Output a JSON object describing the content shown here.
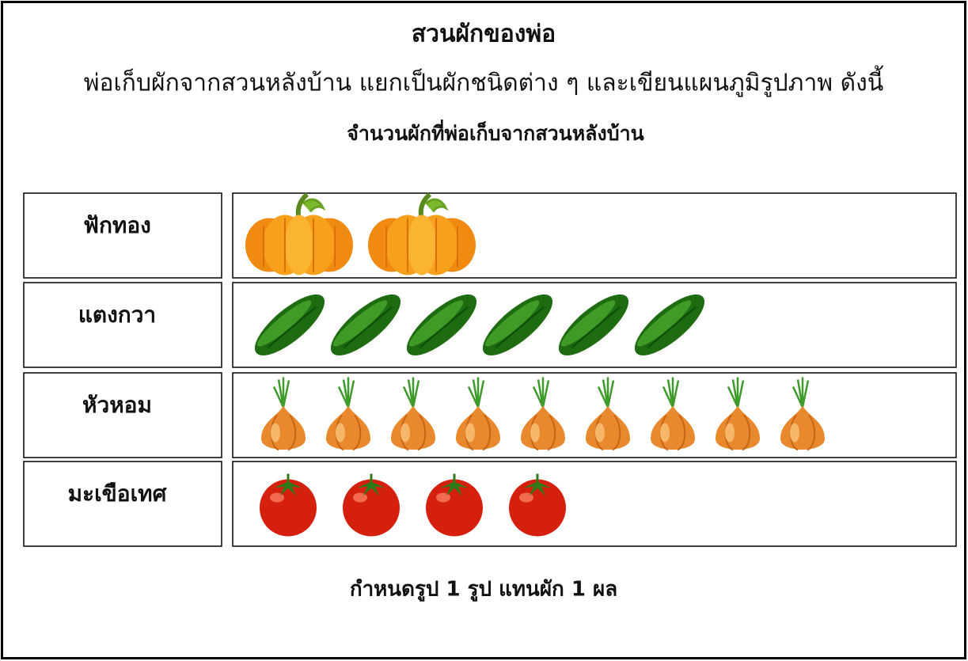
{
  "chart_data": {
    "type": "pictograph",
    "heading": "สวนผักของพ่อ",
    "description": "พ่อเก็บผักจากสวนหลังบ้าน แยกเป็นผักชนิดต่าง ๆ และเขียนแผนภูมิรูปภาพ ดังนี้",
    "title": "จำนวนผักที่พ่อเก็บจากสวนหลังบ้าน",
    "categories": [
      "ฟักทอง",
      "แตงกวา",
      "หัวหอม",
      "มะเขือเทศ"
    ],
    "values": [
      2,
      6,
      9,
      4
    ],
    "key": "กำหนดรูป 1 รูป แทนผัก 1 ผล"
  }
}
